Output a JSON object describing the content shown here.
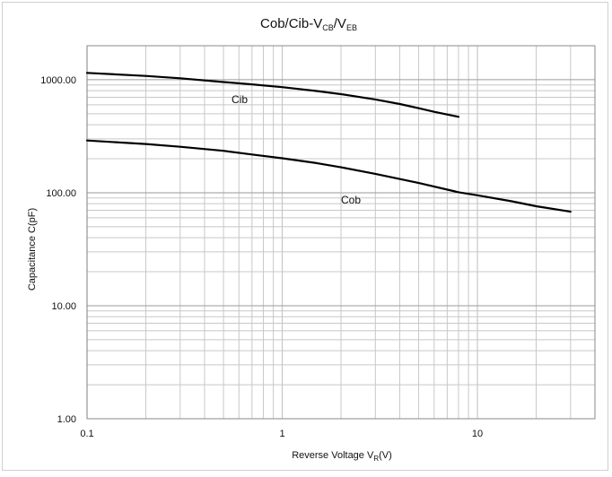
{
  "chart_data": {
    "type": "line",
    "title": {
      "main": "Cob/Cib-V",
      "sub1": "CB",
      "sep": "/V",
      "sub2": "EB"
    },
    "xlabel": {
      "main": "Reverse Voltage   V",
      "sub": "R",
      "unit": "(V)"
    },
    "ylabel": "Capacitance  C(pF)",
    "x_scale": "log",
    "y_scale": "log",
    "xlim": [
      0.1,
      40
    ],
    "ylim": [
      1,
      2000
    ],
    "x_tick_labels": [
      {
        "value": 0.1,
        "label": "0.1"
      },
      {
        "value": 1,
        "label": "1"
      },
      {
        "value": 10,
        "label": "10"
      }
    ],
    "y_tick_labels": [
      {
        "value": 1,
        "label": "1.00"
      },
      {
        "value": 10,
        "label": "10.00"
      },
      {
        "value": 100,
        "label": "100.00"
      },
      {
        "value": 1000,
        "label": "1000.00"
      }
    ],
    "grid": true,
    "series": [
      {
        "name": "Cib",
        "points": [
          [
            0.1,
            1150
          ],
          [
            0.2,
            1080
          ],
          [
            0.3,
            1030
          ],
          [
            0.5,
            955
          ],
          [
            0.7,
            910
          ],
          [
            1,
            860
          ],
          [
            1.5,
            795
          ],
          [
            2,
            745
          ],
          [
            3,
            670
          ],
          [
            4,
            610
          ],
          [
            5,
            560
          ],
          [
            6,
            520
          ],
          [
            8,
            470
          ]
        ]
      },
      {
        "name": "Cob",
        "points": [
          [
            0.1,
            290
          ],
          [
            0.2,
            270
          ],
          [
            0.3,
            255
          ],
          [
            0.5,
            235
          ],
          [
            0.7,
            218
          ],
          [
            1,
            202
          ],
          [
            1.5,
            183
          ],
          [
            2,
            168
          ],
          [
            3,
            147
          ],
          [
            5,
            122
          ],
          [
            8,
            101
          ],
          [
            10,
            95
          ],
          [
            15,
            84
          ],
          [
            20,
            76
          ],
          [
            30,
            68
          ]
        ]
      }
    ],
    "annotations": [
      {
        "text": "Cib",
        "x": 0.55,
        "y": 620
      },
      {
        "text": "Cob",
        "x": 2.0,
        "y": 80
      }
    ],
    "line_color": "#000000",
    "grid_color": "#c8c8c8"
  }
}
